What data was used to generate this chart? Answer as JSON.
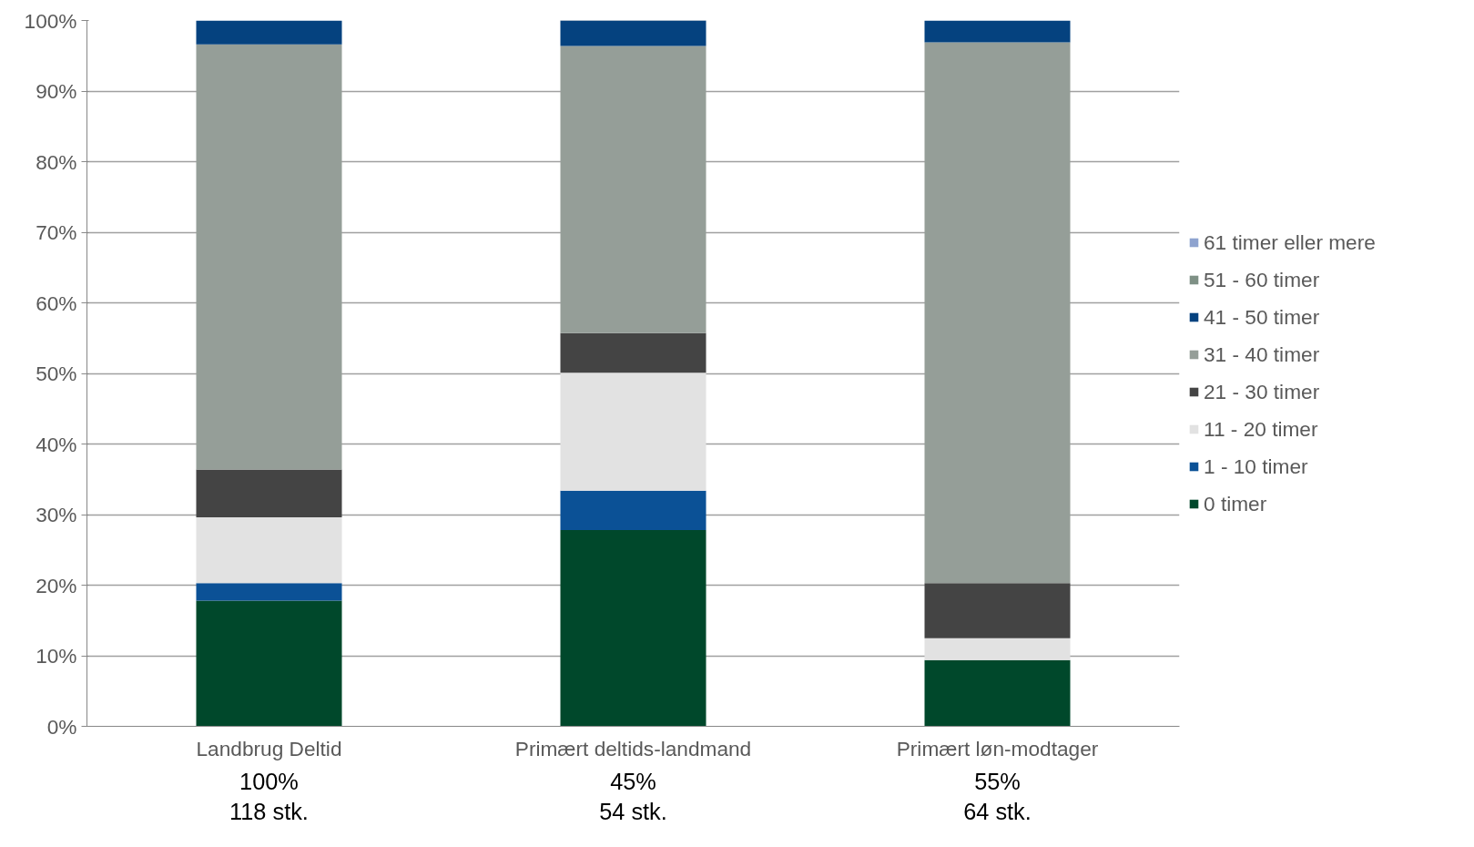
{
  "chart_data": {
    "type": "bar",
    "stacked": true,
    "categories": [
      "Landbrug Deltid",
      "Primært deltids-landmand",
      "Primært løn-modtager"
    ],
    "series": [
      {
        "name": "0 timer",
        "color": "#00482b",
        "values": [
          17.8,
          27.8,
          9.4
        ]
      },
      {
        "name": "1 - 10 timer",
        "color": "#0b5196",
        "values": [
          2.5,
          5.6,
          0
        ]
      },
      {
        "name": "11 - 20 timer",
        "color": "#e2e2e2",
        "values": [
          9.3,
          16.7,
          3.1
        ]
      },
      {
        "name": "21 - 30 timer",
        "color": "#444444",
        "values": [
          6.8,
          5.6,
          7.8
        ]
      },
      {
        "name": "31 - 40 timer",
        "color": "#959e98",
        "values": [
          60.2,
          40.7,
          76.6
        ]
      },
      {
        "name": "41 - 50 timer",
        "color": "#05427f",
        "values": [
          3.4,
          3.7,
          3.1
        ]
      },
      {
        "name": "51 - 60 timer",
        "color": "#7e9085",
        "values": [
          0,
          0,
          0
        ]
      },
      {
        "name": "61 timer eller mere",
        "color": "#8ea3cf",
        "values": [
          0,
          0,
          0
        ]
      }
    ],
    "ylim": [
      0,
      100
    ],
    "yticks": [
      {
        "value": 0,
        "label": "0%"
      },
      {
        "value": 10,
        "label": "10%"
      },
      {
        "value": 20,
        "label": "20%"
      },
      {
        "value": 30,
        "label": "30%"
      },
      {
        "value": 40,
        "label": "40%"
      },
      {
        "value": 50,
        "label": "50%"
      },
      {
        "value": 60,
        "label": "60%"
      },
      {
        "value": 70,
        "label": "70%"
      },
      {
        "value": 80,
        "label": "80%"
      },
      {
        "value": 90,
        "label": "90%"
      },
      {
        "value": 100,
        "label": "100%"
      }
    ],
    "grid": "y",
    "legend": "right",
    "annotations": [
      "100%\n118 stk.",
      "45%\n54 stk.",
      "55%\n64 stk."
    ]
  }
}
